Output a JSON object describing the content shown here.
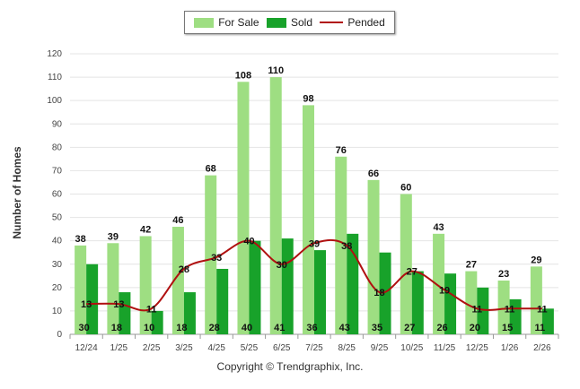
{
  "chart_data": {
    "type": "bar",
    "title": "",
    "xlabel": "",
    "ylabel": "Number of Homes",
    "ylim": [
      0,
      120
    ],
    "yticks": [
      0,
      10,
      20,
      30,
      40,
      50,
      60,
      70,
      80,
      90,
      100,
      110,
      120
    ],
    "categories": [
      "12/24",
      "1/25",
      "2/25",
      "3/25",
      "4/25",
      "5/25",
      "6/25",
      "7/25",
      "8/25",
      "9/25",
      "10/25",
      "11/25",
      "12/25",
      "1/26",
      "2/26"
    ],
    "series": [
      {
        "name": "For Sale",
        "kind": "bar",
        "color": "#9ede82",
        "values": [
          38,
          39,
          42,
          46,
          68,
          108,
          110,
          98,
          76,
          66,
          60,
          43,
          27,
          23,
          29
        ]
      },
      {
        "name": "Sold",
        "kind": "bar",
        "color": "#18a22a",
        "values": [
          30,
          18,
          10,
          18,
          28,
          40,
          41,
          36,
          43,
          35,
          27,
          26,
          20,
          15,
          11
        ]
      },
      {
        "name": "Pended",
        "kind": "line",
        "color": "#b01010",
        "values": [
          13,
          13,
          11,
          28,
          33,
          40,
          30,
          39,
          38,
          18,
          27,
          19,
          11,
          11,
          11
        ]
      }
    ],
    "legend_position": "top-center",
    "grid": true
  },
  "footer": {
    "copyright": "Copyright © Trendgraphix, Inc."
  }
}
